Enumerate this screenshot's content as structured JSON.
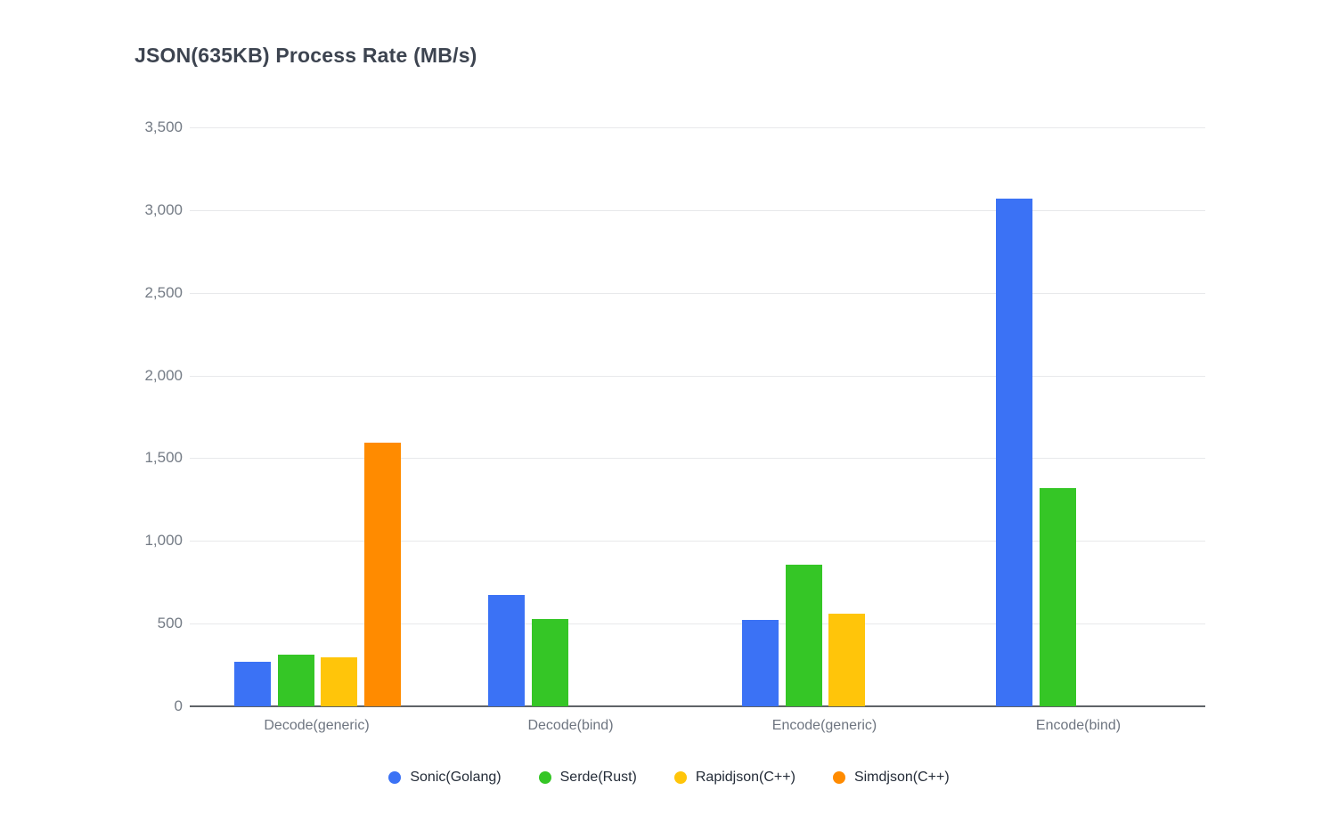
{
  "chart": {
    "title": "JSON(635KB) Process Rate (MB/s)"
  },
  "chart_data": {
    "type": "bar",
    "title": "JSON(635KB) Process Rate (MB/s)",
    "categories": [
      "Decode(generic)",
      "Decode(bind)",
      "Encode(generic)",
      "Encode(bind)"
    ],
    "series": [
      {
        "name": "Sonic(Golang)",
        "color": "#3b72f5",
        "values": [
          270,
          672,
          522,
          3070
        ]
      },
      {
        "name": "Serde(Rust)",
        "color": "#35c626",
        "values": [
          313,
          528,
          857,
          1317
        ]
      },
      {
        "name": "Rapidjson(C++)",
        "color": "#ffc50a",
        "values": [
          294,
          null,
          560,
          null
        ]
      },
      {
        "name": "Simdjson(C++)",
        "color": "#ff8b00",
        "values": [
          1592,
          null,
          null,
          null
        ]
      }
    ],
    "ylim": [
      0,
      3500
    ],
    "ytick_step": 500,
    "ytick_labels": [
      "0",
      "500",
      "1,000",
      "1,500",
      "2,000",
      "2,500",
      "3,000",
      "3,500"
    ],
    "ylabel": "MB/s",
    "xlabel": "",
    "grid": true,
    "legend_position": "bottom",
    "title_color": "#3d4450",
    "grid_color": "#e8e9eb",
    "axis_color": "#5f6368",
    "tick_label_color": "#747b85",
    "legend_text_color": "#242c38",
    "background_color": "#ffffff"
  }
}
